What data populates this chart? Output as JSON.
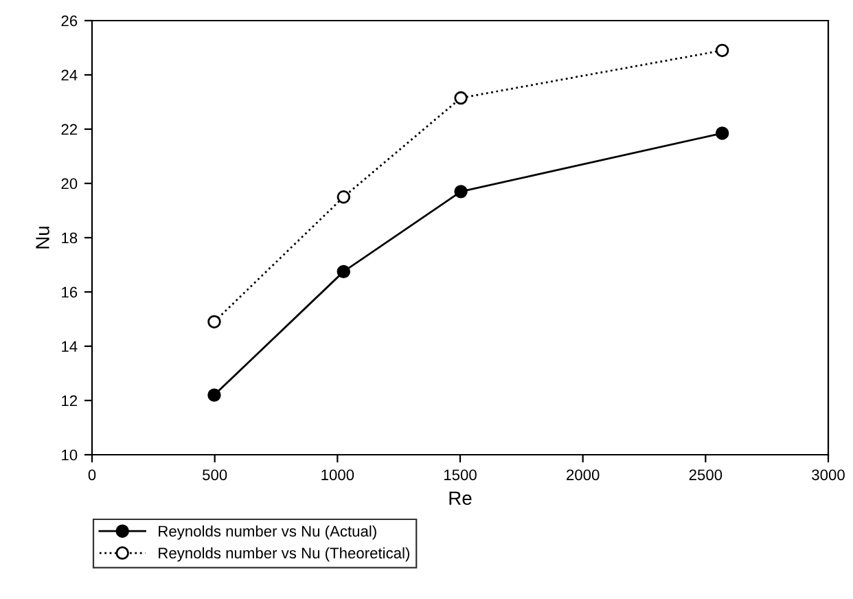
{
  "chart_data": {
    "type": "line",
    "xlabel": "Re",
    "ylabel": "Nu",
    "xlim": [
      0,
      3000
    ],
    "xticks": [
      0,
      500,
      1000,
      1500,
      2000,
      2500,
      3000
    ],
    "ylim": [
      10,
      26
    ],
    "yticks": [
      10,
      12,
      14,
      16,
      18,
      20,
      22,
      24,
      26
    ],
    "grid": false,
    "legend": "bottom left",
    "series": [
      {
        "name": "Reynolds number vs Nu (Actual)",
        "color": "#000000",
        "x": [
          498,
          1025,
          1503,
          2568
        ],
        "values": [
          12.2,
          16.75,
          19.7,
          21.85
        ],
        "marker": "circle",
        "line_style": "solid"
      },
      {
        "name": "Reynolds number vs Nu (Theoretical)",
        "color": "#000000",
        "x": [
          498,
          1025,
          1503,
          2568
        ],
        "values": [
          14.9,
          19.5,
          23.15,
          24.9
        ],
        "marker": "circle",
        "line_style": "dotted"
      }
    ]
  }
}
